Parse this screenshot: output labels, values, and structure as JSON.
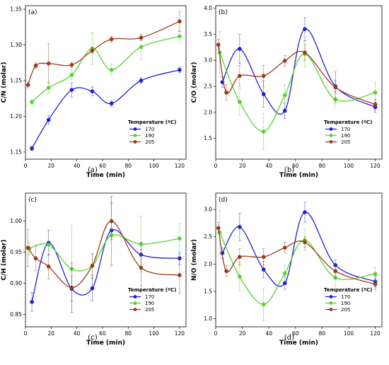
{
  "chart_data": [
    {
      "type": "line",
      "panel_tag": "(a)",
      "caption": "(a)",
      "xlabel": "Time (min)",
      "ylabel": "C/N (molar)",
      "xlim": [
        0,
        125
      ],
      "ylim": [
        1.14,
        1.355
      ],
      "xticks": [
        0,
        20,
        40,
        60,
        80,
        100,
        120
      ],
      "yticks": [
        1.15,
        1.2,
        1.25,
        1.3,
        1.35
      ],
      "ytick_labels": [
        "1.15",
        "1.20",
        "1.25",
        "1.30",
        "1.35"
      ],
      "legend": {
        "title": "Temperature (ºC)",
        "placement": "bottom-right"
      },
      "series": [
        {
          "name": "170",
          "color": "#1f1fd6",
          "x": [
            5,
            18,
            36,
            52,
            67,
            90,
            120
          ],
          "y": [
            1.155,
            1.195,
            1.237,
            1.235,
            1.218,
            1.25,
            1.265
          ],
          "err": [
            0.003,
            0.006,
            0.01,
            0.006,
            0.004,
            0.004,
            0.004
          ]
        },
        {
          "name": "190",
          "color": "#55d42e",
          "x": [
            5,
            18,
            36,
            52,
            67,
            90,
            120
          ],
          "y": [
            1.22,
            1.24,
            1.258,
            1.295,
            1.265,
            1.297,
            1.312
          ],
          "err": [
            0.004,
            0.008,
            0.007,
            0.023,
            0.008,
            0.018,
            0.008
          ]
        },
        {
          "name": "205",
          "color": "#9a3b1c",
          "x": [
            2,
            8,
            18,
            36,
            52,
            67,
            90,
            120
          ],
          "y": [
            1.244,
            1.271,
            1.274,
            1.272,
            1.292,
            1.308,
            1.31,
            1.333
          ],
          "err": [
            0.004,
            0.004,
            0.028,
            0.004,
            0.004,
            0.004,
            0.004,
            0.014
          ]
        }
      ]
    },
    {
      "type": "line",
      "panel_tag": "(b)",
      "caption": "(b)",
      "xlabel": "Time (min)",
      "ylabel": "C/O (molar)",
      "xlim": [
        0,
        125
      ],
      "ylim": [
        1.1,
        4.05
      ],
      "xticks": [
        0,
        20,
        40,
        60,
        80,
        100,
        120
      ],
      "yticks": [
        1.5,
        2.0,
        2.5,
        3.0,
        3.5,
        4.0
      ],
      "ytick_labels": [
        "1.5",
        "2.0",
        "2.5",
        "3.0",
        "3.5",
        "4.0"
      ],
      "legend": {
        "title": "Temperature (ºC)",
        "placement": "bottom-right"
      },
      "series": [
        {
          "name": "170",
          "color": "#1f1fd6",
          "x": [
            5,
            18,
            36,
            52,
            67,
            90,
            120
          ],
          "y": [
            2.58,
            3.22,
            2.35,
            2.03,
            3.6,
            2.5,
            2.1
          ],
          "err": [
            0.1,
            0.28,
            0.25,
            0.15,
            0.22,
            0.12,
            0.1
          ]
        },
        {
          "name": "190",
          "color": "#55d42e",
          "x": [
            3,
            18,
            36,
            52,
            67,
            90,
            120
          ],
          "y": [
            3.15,
            2.2,
            1.63,
            2.33,
            3.12,
            2.25,
            2.38
          ],
          "err": [
            0.4,
            0.25,
            0.35,
            0.2,
            0.25,
            0.15,
            0.2
          ]
        },
        {
          "name": "205",
          "color": "#9a3b1c",
          "x": [
            2,
            8,
            18,
            36,
            52,
            67,
            90,
            120
          ],
          "y": [
            3.3,
            2.38,
            2.7,
            2.7,
            2.99,
            3.15,
            2.48,
            2.15
          ],
          "err": [
            0.1,
            0.15,
            0.2,
            0.2,
            0.1,
            0.15,
            0.3,
            0.1
          ]
        }
      ]
    },
    {
      "type": "line",
      "panel_tag": "(c)",
      "caption": "(c)",
      "xlabel": "Time (min)",
      "ylabel": "C/H (molar)",
      "xlim": [
        0,
        125
      ],
      "ylim": [
        0.83,
        1.045
      ],
      "xticks": [
        0,
        20,
        40,
        60,
        80,
        100,
        120
      ],
      "yticks": [
        0.85,
        0.9,
        0.95,
        1.0
      ],
      "ytick_labels": [
        "0.85",
        "0.90",
        "0.95",
        "1.00"
      ],
      "legend": {
        "title": "Temperature (ºC)",
        "placement": "bottom-right"
      },
      "series": [
        {
          "name": "170",
          "color": "#1f1fd6",
          "x": [
            5,
            18,
            36,
            52,
            67,
            90,
            120
          ],
          "y": [
            0.87,
            0.965,
            0.891,
            0.892,
            0.985,
            0.946,
            0.94
          ],
          "err": [
            0.015,
            0.02,
            0.02,
            0.02,
            0.055,
            0.02,
            0.01
          ]
        },
        {
          "name": "190",
          "color": "#55d42e",
          "x": [
            3,
            18,
            36,
            52,
            67,
            90,
            120
          ],
          "y": [
            0.956,
            0.962,
            0.923,
            0.928,
            0.977,
            0.963,
            0.972
          ],
          "err": [
            0.01,
            0.01,
            0.07,
            0.02,
            0.05,
            0.045,
            0.025
          ]
        },
        {
          "name": "205",
          "color": "#9a3b1c",
          "x": [
            2,
            8,
            18,
            36,
            52,
            67,
            90,
            120
          ],
          "y": [
            0.957,
            0.94,
            0.927,
            0.893,
            0.928,
            1.0,
            0.925,
            0.913
          ],
          "err": [
            0.03,
            0.02,
            0.02,
            0.04,
            0.02,
            0.03,
            0.03,
            0.03
          ]
        }
      ]
    },
    {
      "type": "line",
      "panel_tag": "(d)",
      "caption": "(d)",
      "xlabel": "Time (min)",
      "ylabel": "N/O (molar)",
      "xlim": [
        0,
        125
      ],
      "ylim": [
        0.85,
        3.3
      ],
      "xticks": [
        0,
        20,
        40,
        60,
        80,
        100,
        120
      ],
      "yticks": [
        1.0,
        1.5,
        2.0,
        2.5,
        3.0
      ],
      "ytick_labels": [
        "1.0",
        "1.5",
        "2.0",
        "2.5",
        "3.0"
      ],
      "legend": {
        "title": "Temperature (ºC)",
        "placement": "bottom-right"
      },
      "series": [
        {
          "name": "170",
          "color": "#1f1fd6",
          "x": [
            5,
            18,
            36,
            52,
            67,
            90,
            120
          ],
          "y": [
            2.2,
            2.68,
            1.9,
            1.65,
            2.95,
            1.98,
            1.68
          ],
          "err": [
            0.1,
            0.25,
            0.15,
            0.12,
            0.18,
            0.1,
            0.1
          ]
        },
        {
          "name": "190",
          "color": "#55d42e",
          "x": [
            3,
            18,
            36,
            52,
            67,
            90,
            120
          ],
          "y": [
            2.58,
            1.77,
            1.26,
            1.83,
            2.44,
            1.75,
            1.82
          ],
          "err": [
            0.4,
            0.25,
            0.3,
            0.15,
            0.2,
            0.15,
            0.12
          ]
        },
        {
          "name": "205",
          "color": "#9a3b1c",
          "x": [
            2,
            8,
            18,
            36,
            52,
            67,
            90,
            120
          ],
          "y": [
            2.66,
            1.87,
            2.13,
            2.13,
            2.3,
            2.4,
            1.87,
            1.63
          ],
          "err": [
            0.1,
            0.1,
            0.15,
            0.15,
            0.1,
            0.1,
            0.12,
            0.1
          ]
        }
      ]
    }
  ]
}
